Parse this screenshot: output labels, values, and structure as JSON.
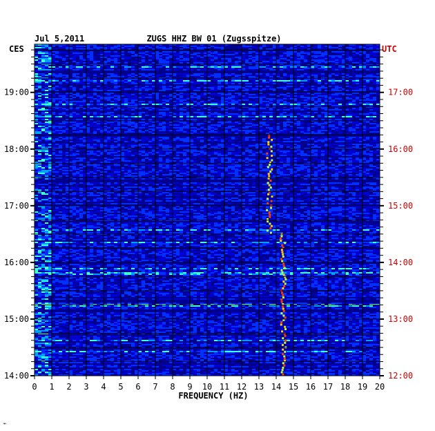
{
  "header": {
    "date": "Jul 5,2011",
    "station": "ZUGS HHZ BW 01 (Zugsspitze)"
  },
  "corner_mark": "⌁",
  "chart_data": {
    "type": "heatmap",
    "title": "ZUGS HHZ BW 01 (Zugsspitze)",
    "date": "Jul 5,2011",
    "xlabel": "FREQUENCY (HZ)",
    "x_ticks": [
      "0",
      "1",
      "2",
      "3",
      "4",
      "5",
      "6",
      "7",
      "8",
      "9",
      "10",
      "11",
      "12",
      "13",
      "14",
      "15",
      "16",
      "17",
      "18",
      "19",
      "20"
    ],
    "xlim": [
      0,
      20
    ],
    "left_axis": {
      "label": "CES",
      "ticks": [
        "14:00",
        "15:00",
        "16:00",
        "17:00",
        "18:00",
        "19:00"
      ],
      "hours": [
        14,
        15,
        16,
        17,
        18,
        19
      ],
      "range_hours": [
        14.0,
        19.85
      ],
      "color": "#000000"
    },
    "right_axis": {
      "label": "UTC",
      "ticks": [
        "12:00",
        "13:00",
        "14:00",
        "15:00",
        "16:00",
        "17:00"
      ],
      "hours": [
        12,
        13,
        14,
        15,
        16,
        17
      ],
      "color": "#cc0000"
    },
    "grid": true,
    "colormap": [
      "#00008f",
      "#0000d0",
      "#0030ff",
      "#00a0ff",
      "#40ffd0",
      "#c0ff40",
      "#ffd000",
      "#ff4000"
    ],
    "features": [
      {
        "name": "tremor-line",
        "freq_hz": [
          14.2,
          14.5
        ],
        "time_range_ces": [
          "14:00",
          "16:30"
        ]
      },
      {
        "name": "tremor-line",
        "freq_hz": [
          13.4,
          13.7
        ],
        "time_range_ces": [
          "16:30",
          "18:15"
        ]
      }
    ]
  }
}
